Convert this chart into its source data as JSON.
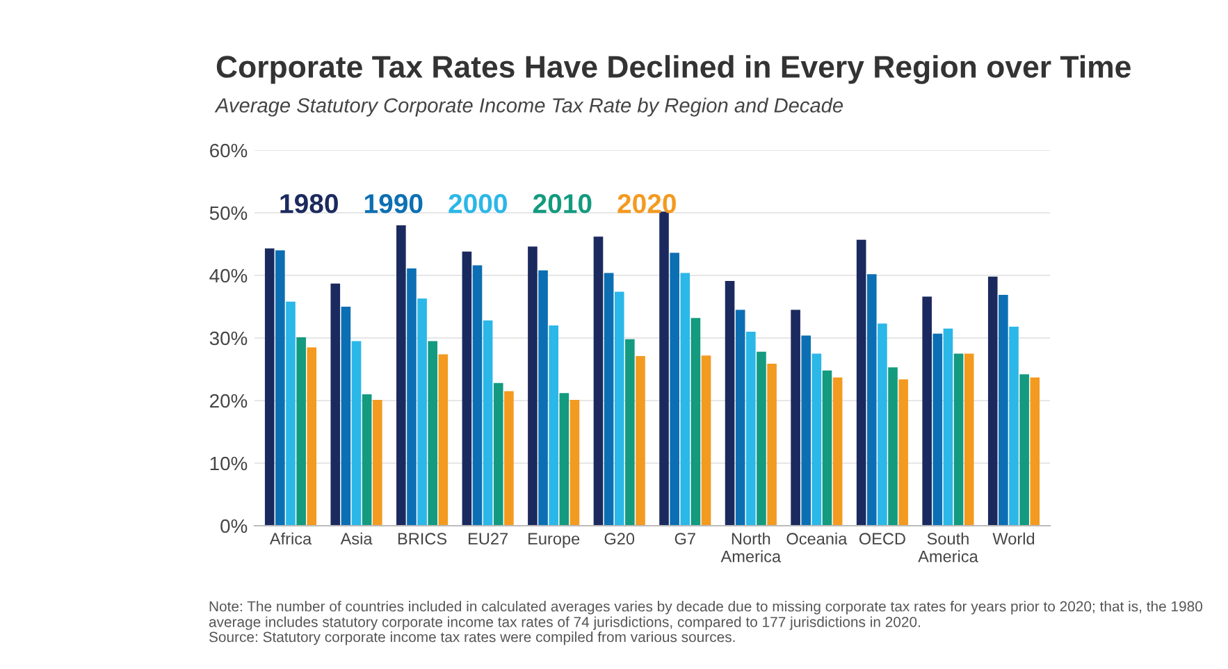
{
  "chart_data": {
    "type": "bar",
    "title": "Corporate Tax Rates Have Declined in Every Region over Time",
    "subtitle": "Average Statutory Corporate Income Tax Rate by Region and Decade",
    "categories": [
      "Africa",
      "Asia",
      "BRICS",
      "EU27",
      "Europe",
      "G20",
      "G7",
      "North\nAmerica",
      "Oceania",
      "OECD",
      "South\nAmerica",
      "World"
    ],
    "series": [
      {
        "name": "1980",
        "color": "#1b2a5e",
        "values": [
          44.3,
          38.7,
          48.0,
          43.8,
          44.6,
          46.2,
          50.2,
          39.1,
          34.5,
          45.7,
          36.6,
          39.8
        ]
      },
      {
        "name": "1990",
        "color": "#0c6fb3",
        "values": [
          44.0,
          35.0,
          41.1,
          41.6,
          40.8,
          40.4,
          43.6,
          34.5,
          30.4,
          40.2,
          30.7,
          36.9
        ]
      },
      {
        "name": "2000",
        "color": "#2bb7e8",
        "values": [
          35.8,
          29.5,
          36.3,
          32.8,
          32.0,
          37.4,
          40.4,
          31.0,
          27.5,
          32.3,
          31.5,
          31.8
        ]
      },
      {
        "name": "2010",
        "color": "#139a7f",
        "values": [
          30.1,
          21.0,
          29.5,
          22.8,
          21.2,
          29.8,
          33.2,
          27.8,
          24.8,
          25.3,
          27.5,
          24.2
        ]
      },
      {
        "name": "2020",
        "color": "#f39a20",
        "values": [
          28.5,
          20.1,
          27.4,
          21.5,
          20.1,
          27.1,
          27.2,
          25.9,
          23.7,
          23.4,
          27.5,
          23.7
        ]
      }
    ],
    "ylim": [
      0,
      60
    ],
    "yticks": [
      {
        "value": 0,
        "label": "0%"
      },
      {
        "value": 10,
        "label": "10%"
      },
      {
        "value": 20,
        "label": "20%"
      },
      {
        "value": 30,
        "label": "30%"
      },
      {
        "value": 40,
        "label": "40%"
      },
      {
        "value": 50,
        "label": "50%"
      },
      {
        "value": 60,
        "label": "60%"
      }
    ],
    "grid": "y",
    "legend": "top left",
    "annotations": [
      "Note: The number of countries included in calculated averages varies by decade due to missing corporate tax rates for years prior to 2020; that is, the 1980 average includes statutory corporate income tax rates of 74 jurisdictions, compared to 177 jurisdictions in 2020.",
      "Source: Statutory corporate income tax rates were compiled from various sources."
    ]
  }
}
